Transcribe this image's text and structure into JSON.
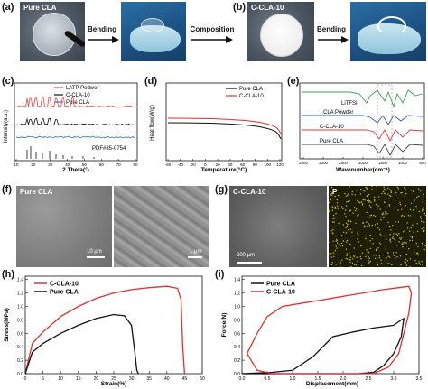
{
  "panels": {
    "a": "(a)",
    "b": "(b)",
    "c": "(c)",
    "d": "(d)",
    "e": "(e)",
    "f": "(f)",
    "g": "(g)",
    "h": "(h)",
    "i": "(i)"
  },
  "row1": {
    "pure_cla": "Pure CLA",
    "c_cla_10": "C-CLA-10",
    "bending_1": "Bending",
    "composition": "Composition",
    "bending_2": "Bending"
  },
  "xrd": {
    "legend": [
      "LATP Podwer",
      "C-CLA-10",
      "Pure CLA"
    ],
    "ylabel": "Intensity(a.u.)",
    "xlabel": "2 Theta(°)",
    "pdf": "PDF#35-0754",
    "xticks": [
      "10",
      "20",
      "30",
      "40",
      "50",
      "60",
      "70",
      "80"
    ],
    "colors": {
      "latp": "#e04a4a",
      "ccla": "#111111",
      "pure": "#2f6fd0"
    }
  },
  "dsc": {
    "legend": [
      "Pure CLA",
      "C-CLA-10"
    ],
    "ylabel": "Heat flow(W/g)",
    "xlabel": "Temperature(°C)",
    "xticks": [
      "-60",
      "-40",
      "-20",
      "0",
      "20",
      "40",
      "60",
      "80",
      "100",
      "120"
    ]
  },
  "ftir": {
    "labels": [
      "LiTFSI",
      "CLA Powder",
      "C-CLA-10",
      "Pure CLA"
    ],
    "xlabel": "Wavenumber(cm⁻¹)",
    "xticks": [
      "3500",
      "3000",
      "2500",
      "2000",
      "1500",
      "1000",
      "500"
    ],
    "colors": {
      "litfsi": "#3aa34a",
      "powder": "#2b56c8",
      "ccla": "#d93a3a",
      "pure": "#444444"
    }
  },
  "sem": {
    "f_label": "Pure CLA",
    "f_scale1": "10 μm",
    "f_scale2": "1 μm",
    "g_label": "C-CLA-10",
    "g_scale": "200 μm",
    "p_label": "P"
  },
  "stress": {
    "legend": [
      "C-CLA-10",
      "Pure CLA"
    ],
    "ylabel": "Stress(MPa)",
    "xlabel": "Strain(%)",
    "yticks": [
      "0.0",
      "0.2",
      "0.4",
      "0.6",
      "0.8",
      "1.0",
      "1.2",
      "1.4"
    ],
    "xticks": [
      "0",
      "5",
      "10",
      "15",
      "20",
      "25",
      "30",
      "35",
      "40",
      "45",
      "50"
    ]
  },
  "force": {
    "legend": [
      "Pure CLA",
      "C-CLA-10"
    ],
    "ylabel": "Force(N)",
    "xlabel": "Displacement(mm)",
    "yticks": [
      "0.0",
      "0.2",
      "0.4",
      "0.6",
      "0.8",
      "1.0",
      "1.2",
      "1.4"
    ],
    "xticks": [
      "0.0",
      "0.5",
      "1.0",
      "1.5",
      "2.0",
      "2.5",
      "3.0",
      "3.5"
    ]
  },
  "chart_data": [
    {
      "type": "line",
      "title": "",
      "xlabel": "Strain(%)",
      "ylabel": "Stress(MPa)",
      "xlim": [
        0,
        50
      ],
      "ylim": [
        0,
        1.45
      ],
      "series": [
        {
          "name": "C-CLA-10",
          "color": "#e0302e",
          "x": [
            0,
            2,
            5,
            10,
            15,
            20,
            25,
            30,
            35,
            40,
            43,
            44,
            44.5,
            45
          ],
          "y": [
            0,
            0.45,
            0.62,
            0.85,
            1.0,
            1.12,
            1.2,
            1.25,
            1.28,
            1.3,
            1.27,
            1.1,
            0.4,
            0.0
          ]
        },
        {
          "name": "Pure CLA",
          "color": "#111111",
          "x": [
            0,
            2,
            5,
            10,
            15,
            20,
            25,
            28,
            30,
            31,
            31.5,
            32
          ],
          "y": [
            0,
            0.32,
            0.45,
            0.6,
            0.72,
            0.82,
            0.88,
            0.86,
            0.72,
            0.3,
            0.05,
            0.0
          ]
        }
      ]
    },
    {
      "type": "line",
      "title": "",
      "xlabel": "Displacement(mm)",
      "ylabel": "Force(N)",
      "xlim": [
        0,
        3.5
      ],
      "ylim": [
        0,
        1.45
      ],
      "series": [
        {
          "name": "Pure CLA",
          "color": "#111111",
          "x": [
            0,
            0.6,
            1.0,
            1.4,
            1.8,
            2.2,
            2.6,
            3.0,
            3.15,
            3.2,
            3.15,
            3.0,
            2.8,
            2.6,
            2.3,
            2.0,
            1.5,
            1.0,
            0.5,
            0.2,
            0
          ],
          "y": [
            0,
            0.02,
            0.05,
            0.25,
            0.55,
            0.62,
            0.68,
            0.72,
            0.8,
            0.82,
            0.55,
            0.3,
            0.12,
            0.02,
            0,
            0,
            0,
            0,
            0,
            0,
            0
          ]
        },
        {
          "name": "C-CLA-10",
          "color": "#e0302e",
          "x": [
            0.1,
            0.3,
            0.5,
            0.8,
            1.2,
            1.6,
            2.0,
            2.4,
            2.8,
            3.1,
            3.3,
            3.35,
            3.3,
            3.2,
            3.1,
            2.9,
            2.6,
            2.3,
            2.0,
            1.5,
            1.0,
            0.6,
            0.3,
            0.1
          ],
          "y": [
            0.3,
            0.6,
            0.85,
            1.0,
            1.05,
            1.1,
            1.15,
            1.2,
            1.25,
            1.28,
            1.3,
            1.2,
            0.9,
            0.6,
            0.3,
            0.1,
            0,
            0,
            0,
            0,
            0,
            0,
            0.05,
            0.3
          ]
        }
      ]
    }
  ]
}
